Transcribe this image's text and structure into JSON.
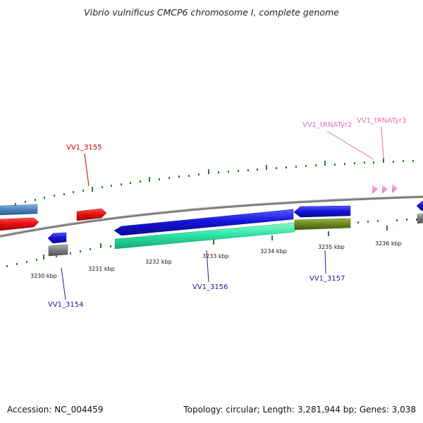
{
  "title": "Vibrio vulnificus CMCP6 chromosome I, complete genome",
  "footer": {
    "accession_label": "Accession:",
    "accession": "NC_004459",
    "topology_label": "Topology:",
    "topology": "circular",
    "length_label": "Length:",
    "length": "3,281,944 bp",
    "genes_label": "Genes:",
    "genes": "3,038"
  },
  "scale": {
    "ticks": [
      "3230 kbp",
      "3231 kbp",
      "3232 kbp",
      "3233 kbp",
      "3234 kbp",
      "3235 kbp",
      "3236 kbp"
    ]
  },
  "labels": {
    "vv1_3155": "VV1_3155",
    "vv1_3154": "VV1_3154",
    "vv1_3156": "VV1_3156",
    "vv1_3157": "VV1_3157",
    "trna_tyr2": "VV1_tRNATyr2",
    "trna_tyr3": "VV1_tRNATyr3"
  },
  "colors": {
    "backbone": "#8a8a8a",
    "red": "#e81010",
    "blue": "#1515dc",
    "steel_blue": "#4f86c0",
    "gray": "#808080",
    "mint": "#2fe6a6",
    "olive": "#6e8a20",
    "pink": "#f08cc8",
    "tick": "#2a7a2a",
    "label_red": "#c00000",
    "label_blue": "#1a1aa0",
    "label_pink": "#e070b0"
  }
}
